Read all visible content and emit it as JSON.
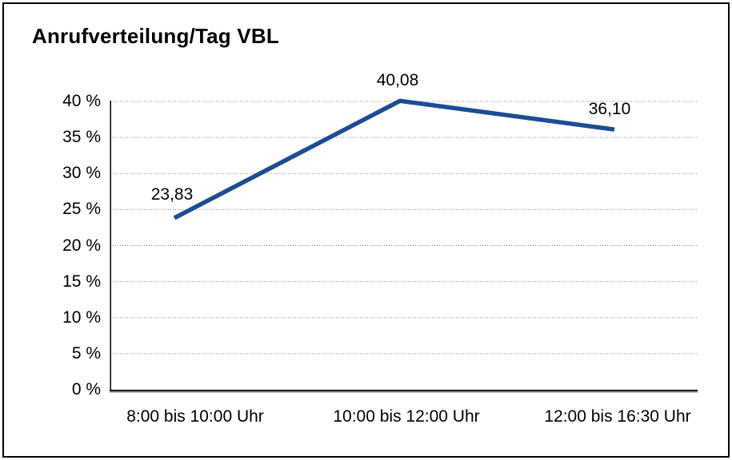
{
  "chart_data": {
    "type": "line",
    "title": "Anrufverteilung/Tag VBL",
    "categories": [
      "8:00 bis 10:00 Uhr",
      "10:00 bis 12:00 Uhr",
      "12:00 bis 16:30 Uhr"
    ],
    "values": [
      23.83,
      40.08,
      36.1
    ],
    "value_labels": [
      "23,83",
      "40,08",
      "36,10"
    ],
    "series_name": "Anrufverteilung",
    "xlabel": "",
    "ylabel": "",
    "ylim": [
      0,
      40
    ],
    "ytick_step": 5,
    "ytick_labels": [
      "0 %",
      "5 %",
      "10 %",
      "15 %",
      "20 %",
      "25 %",
      "30 %",
      "35 %",
      "40 %"
    ],
    "grid": "horizontal-dotted",
    "legend_position": "none",
    "line_color": "#1a4e94",
    "gridline_color": "#888888",
    "axis_color": "#000000",
    "axis_shadow_color": "#7f7f7f",
    "text_color": "#000000",
    "background_color": "#ffffff",
    "border_color": "#000000"
  }
}
